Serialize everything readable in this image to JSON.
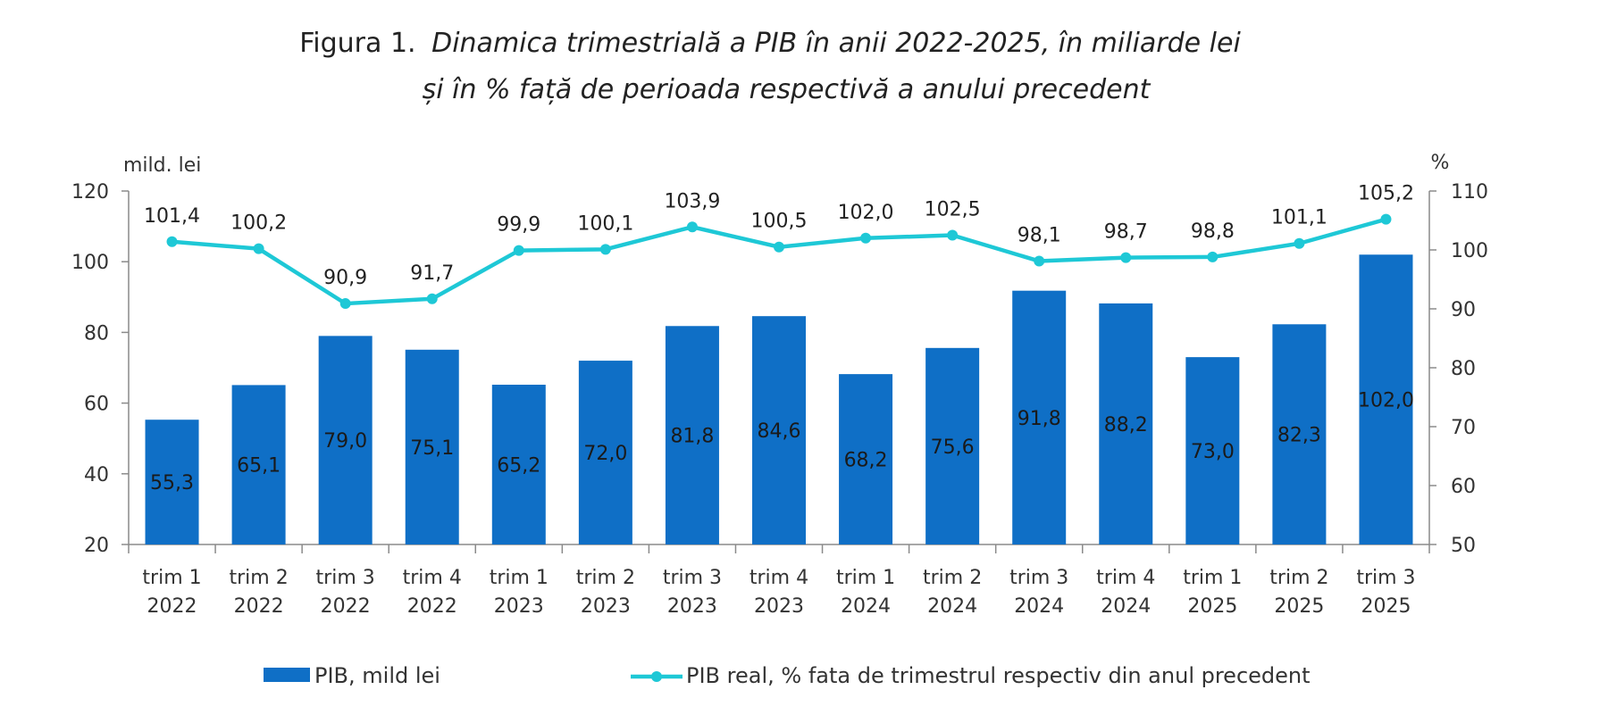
{
  "title": {
    "prefix": "Figura 1.",
    "line1_italic": "Dinamica trimestrială a PIB în anii 2022-2025, în miliarde lei",
    "line2_italic": "și în % față de perioada respectivă a anului precedent"
  },
  "chart_data": {
    "type": "bar",
    "categories": [
      [
        "trim 1",
        "2022"
      ],
      [
        "trim 2",
        "2022"
      ],
      [
        "trim 3",
        "2022"
      ],
      [
        "trim 4",
        "2022"
      ],
      [
        "trim 1",
        "2023"
      ],
      [
        "trim 2",
        "2023"
      ],
      [
        "trim 3",
        "2023"
      ],
      [
        "trim 4",
        "2023"
      ],
      [
        "trim 1",
        "2024"
      ],
      [
        "trim 2",
        "2024"
      ],
      [
        "trim 3",
        "2024"
      ],
      [
        "trim 4",
        "2024"
      ],
      [
        "trim 1",
        "2025"
      ],
      [
        "trim 2",
        "2025"
      ],
      [
        "trim 3",
        "2025"
      ]
    ],
    "series": [
      {
        "name": "PIB, mild lei",
        "type": "bar",
        "axis": "left",
        "color": "#0f6fc6",
        "values": [
          55.3,
          65.1,
          79.0,
          75.1,
          65.2,
          72.0,
          81.8,
          84.6,
          68.2,
          75.6,
          91.8,
          88.2,
          73.0,
          82.3,
          102.0
        ],
        "labels": [
          "55,3",
          "65,1",
          "79,0",
          "75,1",
          "65,2",
          "72,0",
          "81,8",
          "84,6",
          "68,2",
          "75,6",
          "91,8",
          "88,2",
          "73,0",
          "82,3",
          "102,0"
        ]
      },
      {
        "name": "PIB real, % fata de trimestrul respectiv din anul precedent",
        "type": "line",
        "axis": "right",
        "color": "#1ec8d6",
        "values": [
          101.4,
          100.2,
          90.9,
          91.7,
          99.9,
          100.1,
          103.9,
          100.5,
          102.0,
          102.5,
          98.1,
          98.7,
          98.8,
          101.1,
          105.2
        ],
        "labels": [
          "101,4",
          "100,2",
          "90,9",
          "91,7",
          "99,9",
          "100,1",
          "103,9",
          "100,5",
          "102,0",
          "102,5",
          "98,1",
          "98,7",
          "98,8",
          "101,1",
          "105,2"
        ]
      }
    ],
    "y_left": {
      "label": "mild. lei",
      "range": [
        20,
        120
      ],
      "ticks": [
        20,
        40,
        60,
        80,
        100,
        120
      ]
    },
    "y_right": {
      "label": "%",
      "range": [
        50,
        110
      ],
      "ticks": [
        50,
        60,
        70,
        80,
        90,
        100,
        110
      ]
    },
    "grid": false,
    "legend_position": "bottom"
  }
}
